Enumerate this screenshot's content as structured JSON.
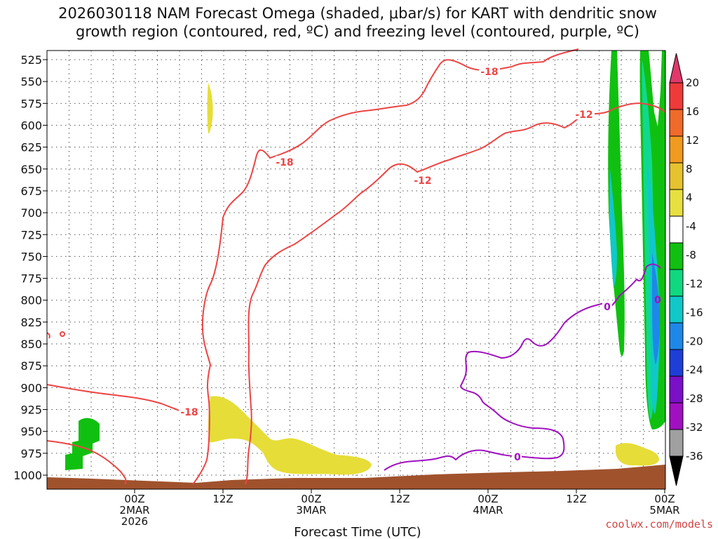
{
  "chart_data": {
    "type": "time-height cross section",
    "title_line1": "2026030118 NAM Forecast Omega (shaded, μbar/s) for KART with dendritic snow",
    "title_line2": "growth region (contoured, red, ºC) and freezing level (contoured, purple, ºC)",
    "xlabel": "Forecast Time (UTC)",
    "credit": "coolwx.com/models",
    "ylabel": "",
    "y_ticks": [
      "525",
      "550",
      "575",
      "600",
      "625",
      "650",
      "675",
      "700",
      "725",
      "750",
      "775",
      "800",
      "825",
      "850",
      "875",
      "900",
      "925",
      "950",
      "975",
      "1000"
    ],
    "y_range_mb": [
      515,
      1010
    ],
    "x_range_hours": [
      -6,
      78
    ],
    "x_ticks": [
      {
        "hour": 6,
        "lines": [
          "00Z",
          "2MAR",
          "2026"
        ]
      },
      {
        "hour": 18,
        "lines": [
          "12Z"
        ]
      },
      {
        "hour": 30,
        "lines": [
          "00Z",
          "3MAR"
        ]
      },
      {
        "hour": 42,
        "lines": [
          "12Z"
        ]
      },
      {
        "hour": 54,
        "lines": [
          "00Z",
          "4MAR"
        ]
      },
      {
        "hour": 66,
        "lines": [
          "12Z"
        ]
      },
      {
        "hour": 78,
        "lines": [
          "00Z",
          "5MAR"
        ]
      }
    ],
    "grid": true,
    "colorbar": {
      "labels": [
        "20",
        "16",
        "12",
        "8",
        "4",
        "-4",
        "-8",
        "-12",
        "-16",
        "-20",
        "-24",
        "-28",
        "-32",
        "-36"
      ],
      "colors": [
        "#e0386a",
        "#ef3a3a",
        "#f06a2a",
        "#f09a20",
        "#e6c22e",
        "#e8e040",
        "#ffffff",
        "#10c010",
        "#10d880",
        "#10c8c8",
        "#1e88e8",
        "#1e3ed8",
        "#7a10c8",
        "#a010c0",
        "#a0a0a0",
        "#000000"
      ]
    },
    "contour_labels": [
      {
        "text": "-18",
        "color": "#ee4444"
      },
      {
        "text": "-18",
        "color": "#ee4444"
      },
      {
        "text": "-18",
        "color": "#ee4444"
      },
      {
        "text": "-12",
        "color": "#ee4444"
      },
      {
        "text": "-12",
        "color": "#ee4444"
      },
      {
        "text": "0",
        "color": "#a010c0"
      },
      {
        "text": "0",
        "color": "#a010c0"
      },
      {
        "text": "0",
        "color": "#a010c0"
      }
    ]
  }
}
